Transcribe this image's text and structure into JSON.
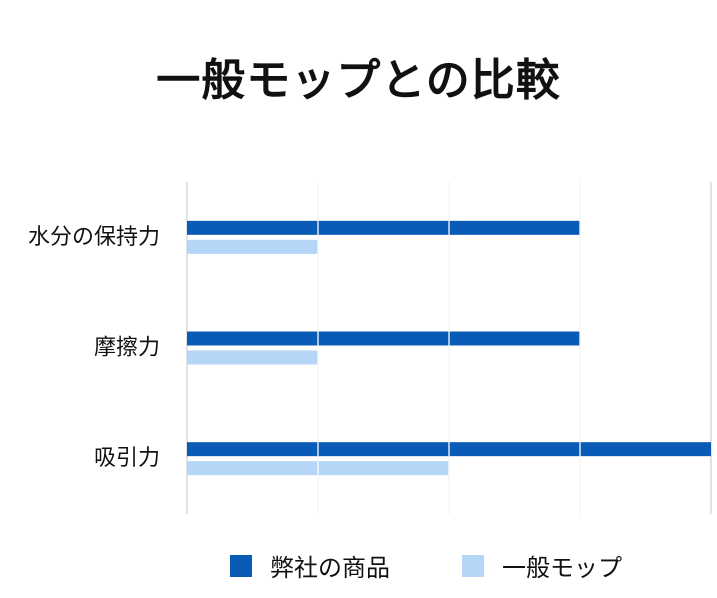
{
  "chart_data": {
    "type": "bar",
    "orientation": "horizontal",
    "title": "一般モップとの比較",
    "xlabel": "",
    "ylabel": "",
    "categories": [
      "水分の保持力",
      "摩擦力",
      "吸引力"
    ],
    "series": [
      {
        "name": "弊社の商品",
        "values": [
          3,
          3,
          4
        ],
        "color": "#0a5bb5"
      },
      {
        "name": "一般モップ",
        "values": [
          1,
          1,
          2
        ],
        "color": "#b5d6f7"
      }
    ],
    "xlim": [
      0,
      4
    ],
    "grid": true,
    "legend_position": "bottom"
  }
}
